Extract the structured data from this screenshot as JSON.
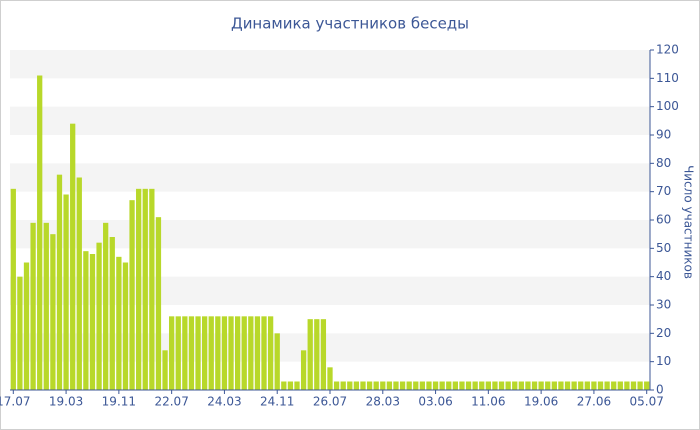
{
  "chart_data": {
    "type": "bar",
    "title": "Динамика участников беседы",
    "y_label": "Число участников",
    "categories": [
      "17.07",
      null,
      null,
      null,
      null,
      null,
      null,
      null,
      "19.03",
      null,
      null,
      null,
      null,
      null,
      null,
      null,
      "19.11",
      null,
      null,
      null,
      null,
      null,
      null,
      null,
      "22.07",
      null,
      null,
      null,
      null,
      null,
      null,
      null,
      "24.03",
      null,
      null,
      null,
      null,
      null,
      null,
      null,
      "24.11",
      null,
      null,
      null,
      null,
      null,
      null,
      null,
      "26.07",
      null,
      null,
      null,
      null,
      null,
      null,
      null,
      "28.03",
      null,
      null,
      null,
      null,
      null,
      null,
      null,
      "03.06",
      null,
      null,
      null,
      null,
      null,
      null,
      null,
      "11.06",
      null,
      null,
      null,
      null,
      null,
      null,
      null,
      "19.06",
      null,
      null,
      null,
      null,
      null,
      null,
      null,
      "27.06",
      null,
      null,
      null,
      null,
      null,
      null,
      null,
      "05.07"
    ],
    "values": [
      71,
      40,
      45,
      59,
      111,
      59,
      55,
      76,
      69,
      94,
      75,
      49,
      48,
      52,
      59,
      54,
      47,
      45,
      67,
      71,
      71,
      71,
      61,
      14,
      26,
      26,
      26,
      26,
      26,
      26,
      26,
      26,
      26,
      26,
      26,
      26,
      26,
      26,
      26,
      26,
      20,
      3,
      3,
      3,
      14,
      25,
      25,
      25,
      8,
      3,
      3,
      3,
      3,
      3,
      3,
      3,
      3,
      3,
      3,
      3,
      3,
      3,
      3,
      3,
      3,
      3,
      3,
      3,
      3,
      3,
      3,
      3,
      3,
      3,
      3,
      3,
      3,
      3,
      3,
      3,
      3,
      3,
      3,
      3,
      3,
      3,
      3,
      3,
      3,
      3,
      3,
      3,
      3,
      3,
      3,
      3,
      3
    ],
    "color": "#b8d82a",
    "ylim": [
      0,
      120
    ],
    "yticks": [
      0,
      10,
      20,
      30,
      40,
      50,
      60,
      70,
      80,
      90,
      100,
      110,
      120
    ],
    "grid": true
  }
}
